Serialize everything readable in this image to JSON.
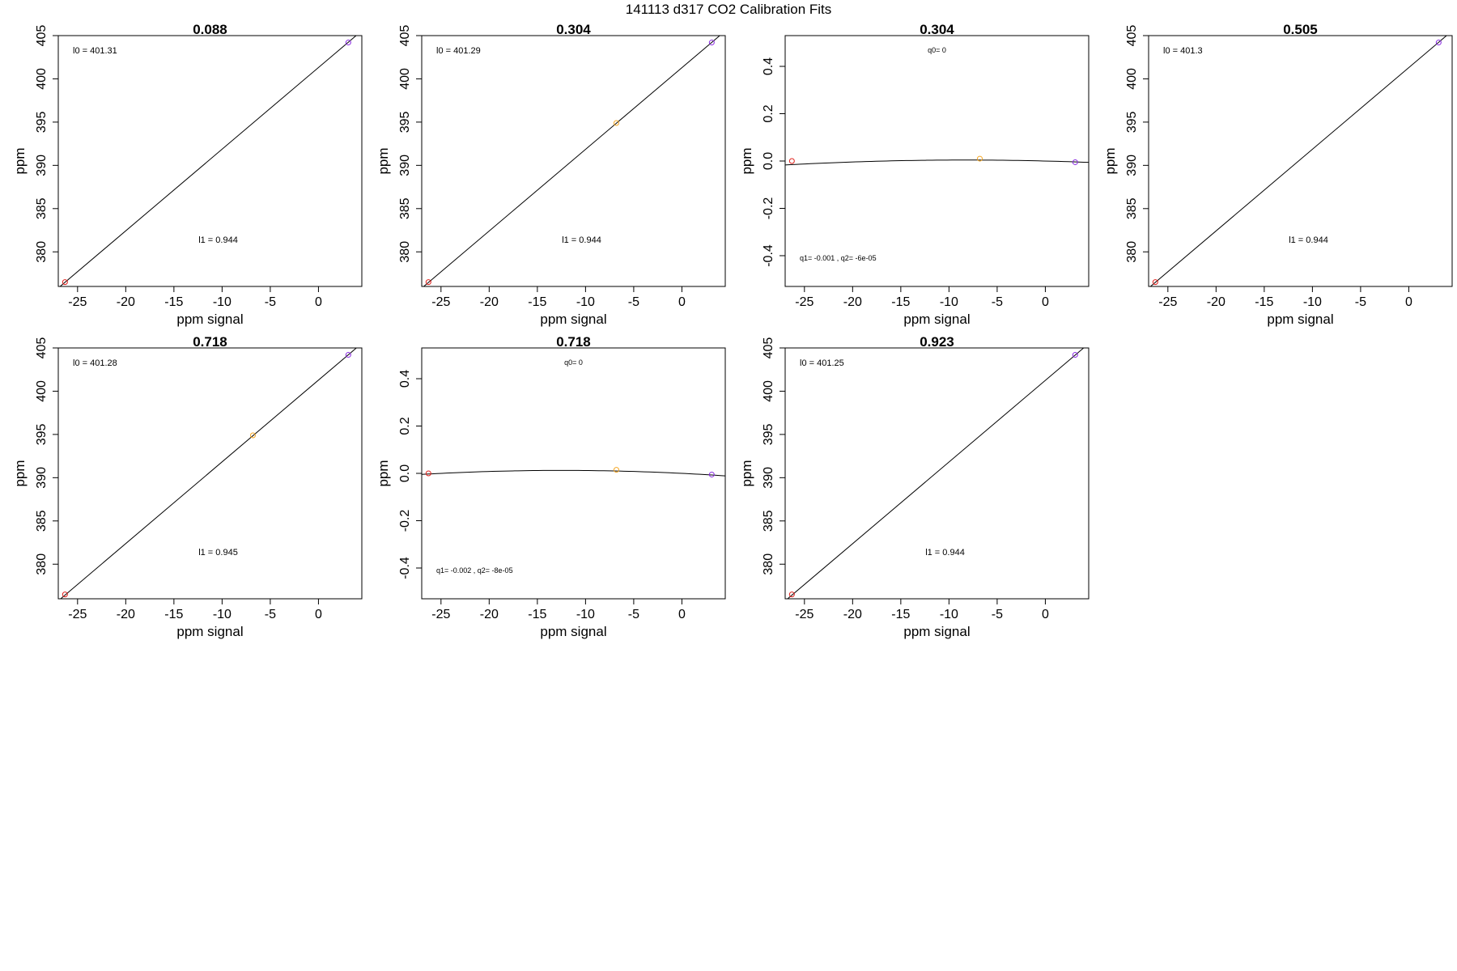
{
  "figure": {
    "title": "141113   d317   CO2 Calibration Fits"
  },
  "colors": {
    "axis": "#000000",
    "fit_line": "#000000",
    "point_low": "#e0201b",
    "point_mid": "#f5a623",
    "point_high": "#8a2be2"
  },
  "chart_data": [
    {
      "type": "scatter",
      "fit": "linear",
      "title": "0.088",
      "xlabel": "ppm signal",
      "ylabel": "ppm",
      "xlim": [
        -27,
        4.5
      ],
      "ylim": [
        376,
        405
      ],
      "x_ticks": [
        -25,
        -20,
        -15,
        -10,
        -5,
        0
      ],
      "y_ticks": [
        380,
        385,
        390,
        395,
        400,
        405
      ],
      "points": [
        {
          "x": -26.3,
          "y": 376.5,
          "color": "#e0201b"
        },
        {
          "x": 3.1,
          "y": 404.2,
          "color": "#8a2be2"
        }
      ],
      "line": {
        "intercept": 401.31,
        "slope": 0.944
      },
      "annotations": [
        {
          "text": "l0 =  401.31",
          "pos": "top-left"
        },
        {
          "text": "l1 =  0.944",
          "pos": "bottom-center"
        }
      ]
    },
    {
      "type": "scatter",
      "fit": "linear",
      "title": "0.304",
      "xlabel": "ppm signal",
      "ylabel": "ppm",
      "xlim": [
        -27,
        4.5
      ],
      "ylim": [
        376,
        405
      ],
      "x_ticks": [
        -25,
        -20,
        -15,
        -10,
        -5,
        0
      ],
      "y_ticks": [
        380,
        385,
        390,
        395,
        400,
        405
      ],
      "points": [
        {
          "x": -26.3,
          "y": 376.5,
          "color": "#e0201b"
        },
        {
          "x": -6.8,
          "y": 394.9,
          "color": "#f5a623"
        },
        {
          "x": 3.1,
          "y": 404.2,
          "color": "#8a2be2"
        }
      ],
      "line": {
        "intercept": 401.29,
        "slope": 0.944
      },
      "annotations": [
        {
          "text": "l0 =  401.29",
          "pos": "top-left"
        },
        {
          "text": "l1 =  0.944",
          "pos": "bottom-center"
        }
      ]
    },
    {
      "type": "scatter",
      "fit": "quadratic",
      "title": "0.304",
      "xlabel": "ppm signal",
      "ylabel": "ppm",
      "xlim": [
        -27,
        4.5
      ],
      "ylim": [
        -0.53,
        0.53
      ],
      "x_ticks": [
        -25,
        -20,
        -15,
        -10,
        -5,
        0
      ],
      "y_ticks": [
        -0.4,
        -0.2,
        0.0,
        0.2,
        0.4
      ],
      "points": [
        {
          "x": -26.3,
          "y": 0.0,
          "color": "#e0201b"
        },
        {
          "x": -6.8,
          "y": 0.01,
          "color": "#f5a623"
        },
        {
          "x": 3.1,
          "y": -0.005,
          "color": "#8a2be2"
        }
      ],
      "curve": {
        "q0": 0,
        "q1": -0.001,
        "q2": -6e-05
      },
      "annotations": [
        {
          "text": "q0= 0",
          "pos": "top-center"
        },
        {
          "text": "q1= -0.001 , q2= -6e-05",
          "pos": "bottom-left"
        }
      ]
    },
    {
      "type": "scatter",
      "fit": "linear",
      "title": "0.505",
      "xlabel": "ppm signal",
      "ylabel": "ppm",
      "xlim": [
        -27,
        4.5
      ],
      "ylim": [
        376,
        405
      ],
      "x_ticks": [
        -25,
        -20,
        -15,
        -10,
        -5,
        0
      ],
      "y_ticks": [
        380,
        385,
        390,
        395,
        400,
        405
      ],
      "points": [
        {
          "x": -26.3,
          "y": 376.5,
          "color": "#e0201b"
        },
        {
          "x": 3.1,
          "y": 404.2,
          "color": "#8a2be2"
        }
      ],
      "line": {
        "intercept": 401.3,
        "slope": 0.944
      },
      "annotations": [
        {
          "text": "l0 =  401.3",
          "pos": "top-left"
        },
        {
          "text": "l1 =  0.944",
          "pos": "bottom-center"
        }
      ]
    },
    {
      "type": "scatter",
      "fit": "linear",
      "title": "0.718",
      "xlabel": "ppm signal",
      "ylabel": "ppm",
      "xlim": [
        -27,
        4.5
      ],
      "ylim": [
        376,
        405
      ],
      "x_ticks": [
        -25,
        -20,
        -15,
        -10,
        -5,
        0
      ],
      "y_ticks": [
        380,
        385,
        390,
        395,
        400,
        405
      ],
      "points": [
        {
          "x": -26.3,
          "y": 376.5,
          "color": "#e0201b"
        },
        {
          "x": -6.8,
          "y": 394.9,
          "color": "#f5a623"
        },
        {
          "x": 3.1,
          "y": 404.2,
          "color": "#8a2be2"
        }
      ],
      "line": {
        "intercept": 401.28,
        "slope": 0.945
      },
      "annotations": [
        {
          "text": "l0 =  401.28",
          "pos": "top-left"
        },
        {
          "text": "l1 =  0.945",
          "pos": "bottom-center"
        }
      ]
    },
    {
      "type": "scatter",
      "fit": "quadratic",
      "title": "0.718",
      "xlabel": "ppm signal",
      "ylabel": "ppm",
      "xlim": [
        -27,
        4.5
      ],
      "ylim": [
        -0.53,
        0.53
      ],
      "x_ticks": [
        -25,
        -20,
        -15,
        -10,
        -5,
        0
      ],
      "y_ticks": [
        -0.4,
        -0.2,
        0.0,
        0.2,
        0.4
      ],
      "points": [
        {
          "x": -26.3,
          "y": 0.0,
          "color": "#e0201b"
        },
        {
          "x": -6.8,
          "y": 0.015,
          "color": "#f5a623"
        },
        {
          "x": 3.1,
          "y": -0.005,
          "color": "#8a2be2"
        }
      ],
      "curve": {
        "q0": 0,
        "q1": -0.002,
        "q2": -8e-05
      },
      "annotations": [
        {
          "text": "q0= 0",
          "pos": "top-center"
        },
        {
          "text": "q1= -0.002 , q2= -8e-05",
          "pos": "bottom-left"
        }
      ]
    },
    {
      "type": "scatter",
      "fit": "linear",
      "title": "0.923",
      "xlabel": "ppm signal",
      "ylabel": "ppm",
      "xlim": [
        -27,
        4.5
      ],
      "ylim": [
        376,
        405
      ],
      "x_ticks": [
        -25,
        -20,
        -15,
        -10,
        -5,
        0
      ],
      "y_ticks": [
        380,
        385,
        390,
        395,
        400,
        405
      ],
      "points": [
        {
          "x": -26.3,
          "y": 376.5,
          "color": "#e0201b"
        },
        {
          "x": 3.1,
          "y": 404.2,
          "color": "#8a2be2"
        }
      ],
      "line": {
        "intercept": 401.25,
        "slope": 0.944
      },
      "annotations": [
        {
          "text": "l0 =  401.25",
          "pos": "top-left"
        },
        {
          "text": "l1 =  0.944",
          "pos": "bottom-center"
        }
      ]
    }
  ]
}
